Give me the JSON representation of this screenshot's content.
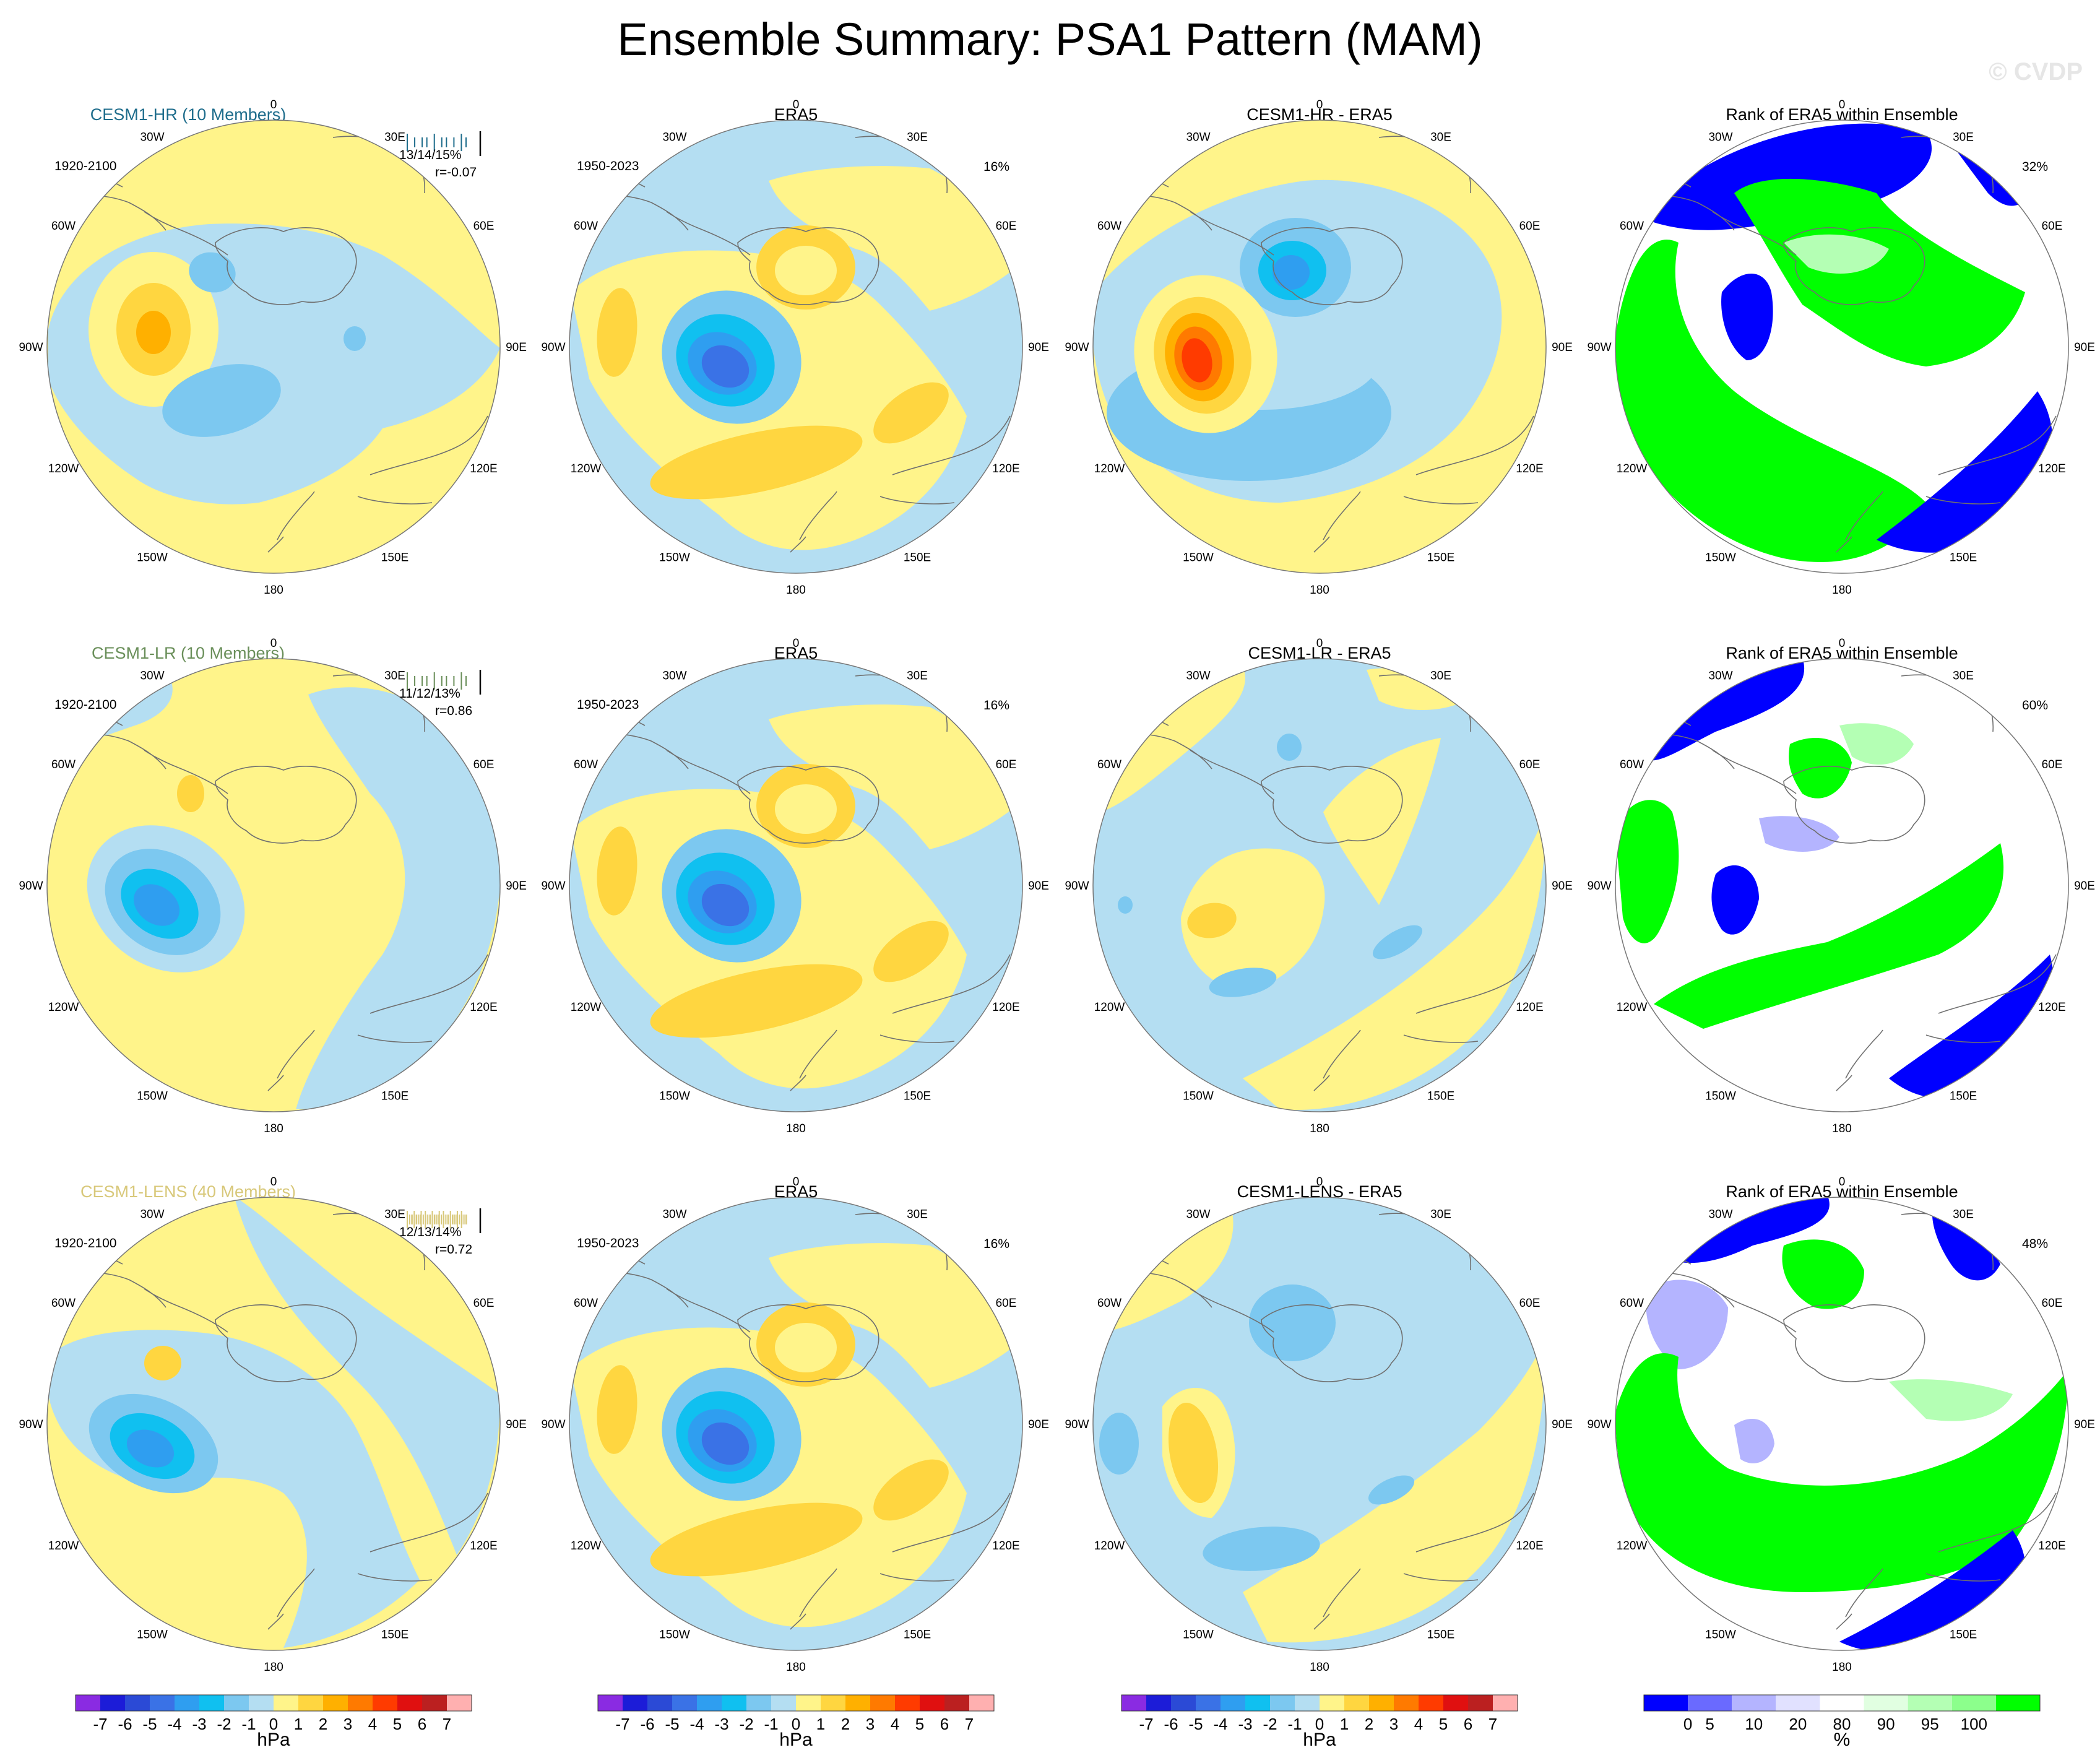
{
  "figure": {
    "title": "Ensemble Summary: PSA1 Pattern (MAM)",
    "watermark": "© CVDP"
  },
  "lon_labels": [
    "0",
    "30E",
    "60E",
    "90E",
    "120E",
    "150E",
    "180",
    "150W",
    "120W",
    "90W",
    "60W",
    "30W"
  ],
  "chart_data": {
    "type": "heatmap",
    "projection": "south polar stereographic",
    "rows": [
      {
        "model": "CESM1-HR (10 Members)",
        "model_color": "#1f6d8c",
        "members": 10,
        "model_period": "1920-2100",
        "pct_stats": "13/14/15%",
        "corr": "r=-0.07",
        "obs_title": "ERA5",
        "obs_period": "1950-2023",
        "obs_pct": "16%",
        "diff_title": "CESM1-HR - ERA5",
        "rank_title": "Rank of ERA5 within Ensemble",
        "rank_pct": "32%"
      },
      {
        "model": "CESM1-LR (10 Members)",
        "model_color": "#6a8f5a",
        "members": 10,
        "model_period": "1920-2100",
        "pct_stats": "11/12/13%",
        "corr": "r=0.86",
        "obs_title": "ERA5",
        "obs_period": "1950-2023",
        "obs_pct": "16%",
        "diff_title": "CESM1-LR - ERA5",
        "rank_title": "Rank of ERA5 within Ensemble",
        "rank_pct": "60%"
      },
      {
        "model": "CESM1-LENS (40 Members)",
        "model_color": "#d8c87a",
        "members": 40,
        "model_period": "1920-2100",
        "pct_stats": "12/13/14%",
        "corr": "r=0.72",
        "obs_title": "ERA5",
        "obs_period": "1950-2023",
        "obs_pct": "16%",
        "diff_title": "CESM1-LENS - ERA5",
        "rank_title": "Rank of ERA5 within Ensemble",
        "rank_pct": "48%"
      }
    ],
    "hpa_colorbar": {
      "unit": "hPa",
      "tick_labels": [
        "-7",
        "-6",
        "-5",
        "-4",
        "-3",
        "-2",
        "-1",
        "0",
        "1",
        "2",
        "3",
        "4",
        "5",
        "6",
        "7"
      ],
      "colors": [
        "#8a2be2",
        "#1c1cd8",
        "#2b4ad6",
        "#3a72e6",
        "#2f9ef0",
        "#10c0f0",
        "#7cc8f0",
        "#b4def2",
        "#fff48a",
        "#ffd640",
        "#ffb000",
        "#ff7a00",
        "#ff3b00",
        "#e01010",
        "#bb2020",
        "#ffb0b0"
      ]
    },
    "rank_colorbar": {
      "unit": "%",
      "tick_labels": [
        "0",
        "5",
        "10",
        "20",
        "80",
        "90",
        "95",
        "100"
      ],
      "colors": [
        "#0000ff",
        "#6a6aff",
        "#b4b4ff",
        "#e1e1ff",
        "#ffffff",
        "#e1ffe1",
        "#b4ffb4",
        "#8cff8c",
        "#00ff00"
      ]
    }
  }
}
